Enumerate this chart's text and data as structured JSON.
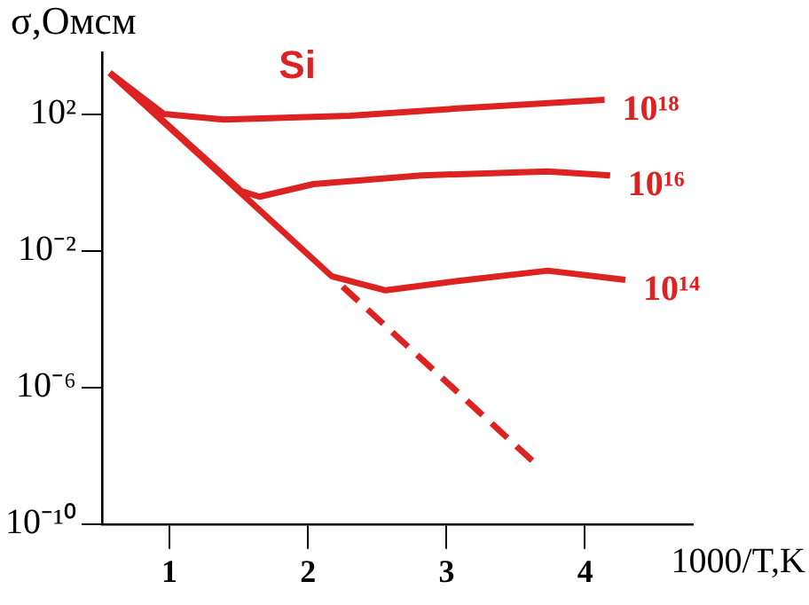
{
  "chart_data": {
    "type": "line",
    "xlabel": "1000/T,K",
    "ylabel": "σ,Омсм",
    "annotations": [
      "Si"
    ],
    "log": "y",
    "grid": false,
    "legend": false,
    "marker": "none",
    "xlim": [
      0.52,
      4.77
    ],
    "xticks": [
      1,
      2,
      3,
      4
    ],
    "ylim": [
      1e-10,
      6000
    ],
    "yticks": [
      {
        "value": 100,
        "label": "10²"
      },
      {
        "value": 0.01,
        "label": "10⁻²"
      },
      {
        "value": 1e-06,
        "label": "10⁻⁶"
      },
      {
        "value": 1e-10,
        "label": "10⁻¹⁰"
      }
    ],
    "series": [
      {
        "name": "10¹⁸",
        "color": "#dd2222",
        "x": [
          0.57,
          0.96,
          1.39,
          2.3,
          3.08,
          4.14
        ],
        "values": [
          1600,
          100,
          69,
          89,
          145,
          260
        ]
      },
      {
        "name": "10¹⁶",
        "color": "#dd2222",
        "x": [
          0.57,
          1.52,
          1.65,
          2.04,
          2.82,
          3.73,
          4.18
        ],
        "values": [
          1600,
          0.55,
          0.38,
          0.89,
          1.6,
          2.1,
          1.6
        ]
      },
      {
        "name": "10¹⁴",
        "color": "#dd2222",
        "x": [
          0.57,
          2.17,
          2.56,
          3.08,
          3.73,
          4.29
        ],
        "values": [
          1600,
          0.0018,
          0.00069,
          0.0013,
          0.0026,
          0.0014
        ]
      },
      {
        "color": "#dd2222",
        "line_style": "dashed",
        "x": [
          2.25,
          3.66
        ],
        "values": [
          0.00089,
          5e-09
        ]
      }
    ]
  }
}
